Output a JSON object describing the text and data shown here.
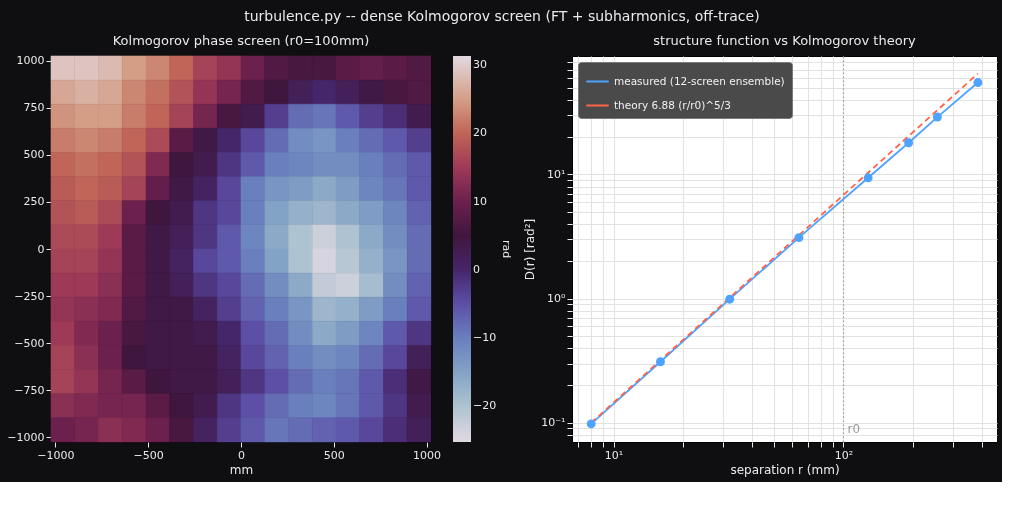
{
  "chart_data": [
    {
      "type": "heatmap",
      "title": "Kolmogorov phase screen (r0=100mm)",
      "xlabel": "mm",
      "clabel": "rad",
      "annotations": [
        "turbulence.py -- dense Kolmogorov screen (FT + subharmonics, off-trace)"
      ],
      "x": [
        -960,
        -832,
        -704,
        -576,
        -448,
        -320,
        -192,
        -64,
        64,
        192,
        320,
        448,
        576,
        704,
        832,
        960
      ],
      "y": [
        960,
        832,
        704,
        576,
        448,
        320,
        192,
        64,
        -64,
        -192,
        -320,
        -448,
        -576,
        -704,
        -832,
        -960
      ],
      "cells": [
        [
          29,
          29,
          28,
          25,
          23,
          20,
          16,
          14,
          10,
          7,
          6,
          6,
          8,
          9,
          8,
          7
        ],
        [
          26,
          27,
          26,
          23,
          21,
          18,
          14,
          11,
          7,
          5,
          2,
          0,
          2,
          4,
          6,
          7
        ],
        [
          24,
          25,
          25,
          22,
          20,
          16,
          11,
          6,
          3,
          -3,
          -8,
          -9,
          -6,
          -3,
          -1,
          3
        ],
        [
          22,
          23,
          22,
          20,
          17,
          8,
          4,
          0,
          -4,
          -8,
          -12,
          -13,
          -10,
          -8,
          -6,
          -3
        ],
        [
          20,
          21,
          20,
          18,
          12,
          5,
          3,
          -2,
          -6,
          -10,
          -11,
          -12,
          -12,
          -10,
          -8,
          -6
        ],
        [
          19,
          20,
          19,
          16,
          9,
          4,
          1,
          -4,
          -10,
          -13,
          -14,
          -16,
          -14,
          -11,
          -9,
          -6
        ],
        [
          18,
          19,
          17,
          10,
          5,
          3,
          -2,
          -4,
          -10,
          -15,
          -17,
          -18,
          -16,
          -14,
          -11,
          -7
        ],
        [
          17,
          17,
          15,
          8,
          4,
          2,
          -2,
          -6,
          -11,
          -16,
          -20,
          -23,
          -20,
          -16,
          -12,
          -8
        ],
        [
          16,
          16,
          14,
          8,
          4,
          1,
          -4,
          -6,
          -10,
          -15,
          -20,
          -24,
          -21,
          -17,
          -13,
          -8
        ],
        [
          15,
          15,
          13,
          8,
          4,
          2,
          -2,
          -4,
          -8,
          -12,
          -16,
          -22,
          -23,
          -19,
          -12,
          -7
        ],
        [
          14,
          13,
          12,
          7,
          4,
          4,
          1,
          -3,
          -7,
          -10,
          -13,
          -18,
          -17,
          -14,
          -10,
          -6
        ],
        [
          15,
          12,
          10,
          6,
          4,
          4,
          3,
          0,
          -5,
          -8,
          -12,
          -16,
          -14,
          -11,
          -6,
          -2
        ],
        [
          16,
          13,
          10,
          5,
          4,
          4,
          4,
          1,
          -4,
          -7,
          -10,
          -12,
          -11,
          -8,
          -4,
          2
        ],
        [
          16,
          14,
          11,
          8,
          5,
          4,
          4,
          2,
          -2,
          -5,
          -8,
          -10,
          -9,
          -6,
          -1,
          4
        ],
        [
          13,
          12,
          11,
          11,
          8,
          5,
          3,
          -2,
          -5,
          -8,
          -10,
          -11,
          -9,
          -6,
          -2,
          3
        ],
        [
          10,
          11,
          13,
          12,
          10,
          6,
          1,
          -3,
          -6,
          -9,
          -8,
          -7,
          -6,
          -4,
          -1,
          2
        ]
      ],
      "xlim": [
        -1024,
        1024
      ],
      "ylim": [
        -1024,
        1024
      ],
      "xticks": [
        -1000,
        -500,
        0,
        500,
        1000
      ],
      "yticks": [
        -1000,
        -750,
        -500,
        -250,
        0,
        250,
        500,
        750,
        1000
      ],
      "clim": [
        -25.2,
        31.3
      ],
      "cticks": [
        -20,
        -10,
        0,
        10,
        20,
        30
      ]
    },
    {
      "type": "line",
      "title": "structure function vs Kolmogorov theory",
      "xlabel": "separation r (mm)",
      "ylabel": "D(r) [rad²]",
      "log": "xy",
      "grid": true,
      "legend": "top left",
      "xlim": [
        6.6,
        465
      ],
      "ylim": [
        0.07,
        90
      ],
      "xticks": [
        {
          "value": 7,
          "label": null
        },
        {
          "value": 8,
          "label": null
        },
        {
          "value": 9,
          "label": null
        },
        {
          "value": 10,
          "label": "10¹"
        },
        {
          "value": 20,
          "label": null
        },
        {
          "value": 30,
          "label": null
        },
        {
          "value": 40,
          "label": null
        },
        {
          "value": 50,
          "label": null
        },
        {
          "value": 60,
          "label": null
        },
        {
          "value": 70,
          "label": null
        },
        {
          "value": 80,
          "label": null
        },
        {
          "value": 90,
          "label": null
        },
        {
          "value": 100,
          "label": "10²"
        },
        {
          "value": 200,
          "label": null
        },
        {
          "value": 300,
          "label": null
        },
        {
          "value": 400,
          "label": null
        }
      ],
      "yticks": [
        {
          "value": 0.08,
          "label": null
        },
        {
          "value": 0.09,
          "label": null
        },
        {
          "value": 0.1,
          "label": "10⁻¹"
        },
        {
          "value": 0.2,
          "label": null
        },
        {
          "value": 0.3,
          "label": null
        },
        {
          "value": 0.4,
          "label": null
        },
        {
          "value": 0.5,
          "label": null
        },
        {
          "value": 0.6,
          "label": null
        },
        {
          "value": 0.7,
          "label": null
        },
        {
          "value": 0.8,
          "label": null
        },
        {
          "value": 0.9,
          "label": null
        },
        {
          "value": 1,
          "label": "10⁰"
        },
        {
          "value": 2,
          "label": null
        },
        {
          "value": 3,
          "label": null
        },
        {
          "value": 4,
          "label": null
        },
        {
          "value": 5,
          "label": null
        },
        {
          "value": 6,
          "label": null
        },
        {
          "value": 7,
          "label": null
        },
        {
          "value": 8,
          "label": null
        },
        {
          "value": 9,
          "label": null
        },
        {
          "value": 10,
          "label": "10¹"
        },
        {
          "value": 20,
          "label": null
        },
        {
          "value": 30,
          "label": null
        },
        {
          "value": 40,
          "label": null
        },
        {
          "value": 50,
          "label": null
        },
        {
          "value": 60,
          "label": null
        },
        {
          "value": 70,
          "label": null
        },
        {
          "value": 80,
          "label": null
        }
      ],
      "series": [
        {
          "name": "measured (12-screen ensemble)",
          "color": "#4da3ff",
          "marker": "circle",
          "line_style": "solid",
          "x": [
            8,
            16,
            32,
            64,
            128,
            192,
            256,
            384
          ],
          "values": [
            0.098,
            0.31,
            0.99,
            3.1,
            9.4,
            18,
            29,
            55
          ]
        },
        {
          "name": "theory 6.88 (r/r0)^5/3",
          "color": "#ff6347",
          "line_style": "dashed",
          "x": [
            8,
            384
          ],
          "values": [
            0.1,
            65
          ]
        }
      ],
      "ref_lines": [
        {
          "axis": "x",
          "value": 100,
          "label": "r0",
          "color": "#999999",
          "line_style": "dotted"
        }
      ]
    }
  ]
}
